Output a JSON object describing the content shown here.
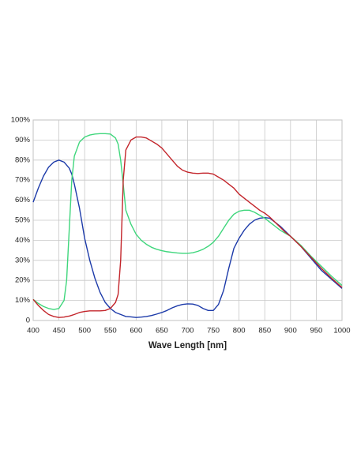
{
  "chart_data": {
    "type": "line",
    "xlabel": "Wave Length [nm]",
    "x": [
      400,
      410,
      420,
      430,
      440,
      450,
      460,
      465,
      470,
      475,
      480,
      490,
      500,
      510,
      520,
      530,
      540,
      550,
      560,
      565,
      570,
      575,
      580,
      590,
      600,
      610,
      620,
      630,
      640,
      650,
      660,
      670,
      680,
      690,
      700,
      710,
      720,
      730,
      740,
      750,
      760,
      770,
      780,
      790,
      800,
      810,
      820,
      830,
      840,
      850,
      860,
      870,
      880,
      890,
      900,
      920,
      940,
      960,
      980,
      1000
    ],
    "series": [
      {
        "color": "#1c3aa9",
        "values": [
          59,
          66,
          72,
          76.5,
          79,
          80,
          79,
          77.5,
          76,
          73,
          68,
          56,
          41,
          30,
          21,
          14,
          9,
          6,
          4,
          3.5,
          3,
          2.5,
          2,
          1.8,
          1.5,
          1.7,
          2,
          2.5,
          3.2,
          4,
          5,
          6.3,
          7.3,
          8,
          8.3,
          8.2,
          7.5,
          6,
          5,
          5,
          8,
          15,
          26,
          36,
          41,
          45,
          48,
          50,
          51,
          51.3,
          51,
          49,
          47,
          44.5,
          42,
          37,
          31,
          25,
          20.5,
          16
        ]
      },
      {
        "color": "#3fd67c",
        "values": [
          10.5,
          8.5,
          7,
          6,
          5.5,
          6,
          10,
          20,
          45,
          70,
          82,
          89,
          91.5,
          92.5,
          93,
          93.2,
          93.2,
          93,
          91,
          88,
          80,
          68,
          55,
          48,
          43,
          40,
          38,
          36.5,
          35.5,
          34.8,
          34.3,
          34,
          33.7,
          33.5,
          33.5,
          33.8,
          34.5,
          35.5,
          37,
          39,
          42,
          46,
          50,
          53,
          54.5,
          55,
          55,
          54,
          52.5,
          51,
          49,
          47,
          45,
          43.5,
          42,
          37.5,
          32,
          27,
          22,
          17.5
        ]
      },
      {
        "color": "#c3252b",
        "values": [
          10.5,
          7.5,
          5,
          3,
          2,
          1.5,
          1.7,
          2,
          2.2,
          2.6,
          3,
          4,
          4.5,
          4.8,
          4.8,
          4.8,
          5,
          6,
          9,
          13,
          30,
          70,
          85,
          90,
          91.5,
          91.5,
          91,
          89.5,
          88,
          86,
          83,
          80,
          77,
          75,
          74,
          73.5,
          73.3,
          73.5,
          73.5,
          73,
          71.5,
          70,
          68,
          66,
          63,
          61,
          59,
          57,
          55,
          53.5,
          51.5,
          49,
          46.5,
          44,
          42,
          37,
          31.5,
          26,
          21,
          16.5
        ]
      }
    ],
    "xlim": [
      400,
      1000
    ],
    "xticks": [
      400,
      450,
      500,
      550,
      600,
      650,
      700,
      750,
      800,
      850,
      900,
      950,
      1000
    ],
    "ylim": [
      0,
      100
    ],
    "yticks": [
      0,
      {
        "value": 10,
        "label": "10%"
      },
      {
        "value": 20,
        "label": "20%"
      },
      {
        "value": 30,
        "label": "30%"
      },
      {
        "value": 40,
        "label": "40%"
      },
      {
        "value": 50,
        "label": "50%"
      },
      {
        "value": 60,
        "label": "60%"
      },
      {
        "value": 70,
        "label": "70%"
      },
      {
        "value": 80,
        "label": "80%"
      },
      {
        "value": 90,
        "label": "90%"
      },
      {
        "value": 100,
        "label": "100%"
      }
    ],
    "grid": true
  }
}
